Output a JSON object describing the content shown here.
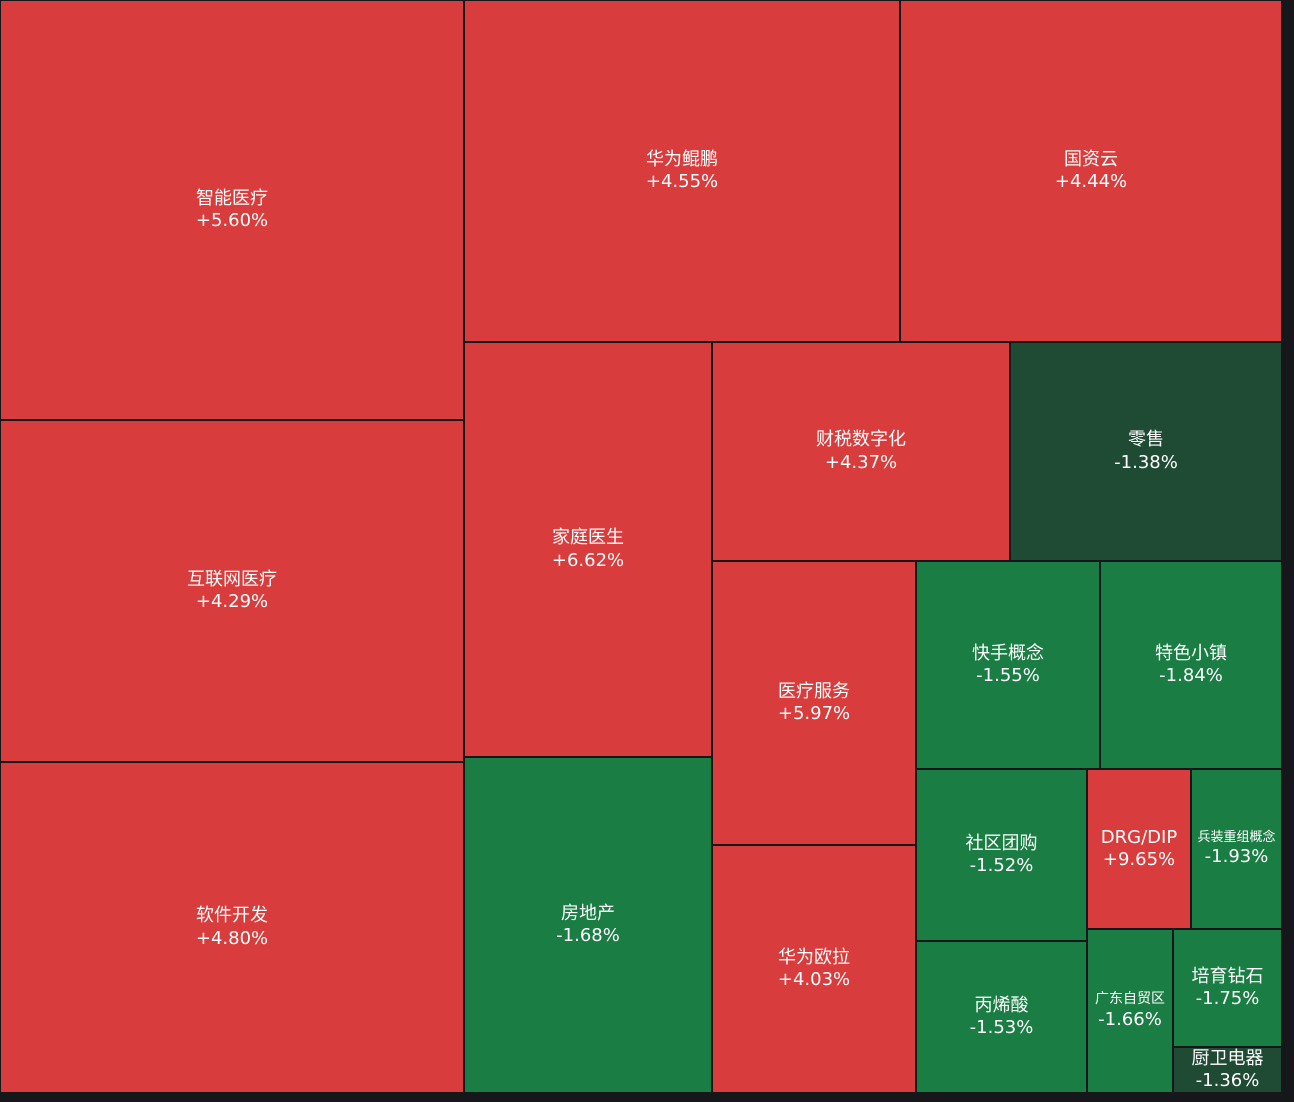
{
  "colors": {
    "up": "#d93c3c",
    "down": "#1a7d43",
    "down_dark": "#1f4a33",
    "background": "#15171b",
    "text": "#ffffff"
  },
  "chart_data": {
    "type": "treemap",
    "title": "",
    "cells": [
      {
        "name": "智能医疗",
        "change": 5.6,
        "label": "+5.60%"
      },
      {
        "name": "互联网医疗",
        "change": 4.29,
        "label": "+4.29%"
      },
      {
        "name": "软件开发",
        "change": 4.8,
        "label": "+4.80%"
      },
      {
        "name": "华为鲲鹏",
        "change": 4.55,
        "label": "+4.55%"
      },
      {
        "name": "国资云",
        "change": 4.44,
        "label": "+4.44%"
      },
      {
        "name": "家庭医生",
        "change": 6.62,
        "label": "+6.62%"
      },
      {
        "name": "房地产",
        "change": -1.68,
        "label": "-1.68%"
      },
      {
        "name": "财税数字化",
        "change": 4.37,
        "label": "+4.37%"
      },
      {
        "name": "零售",
        "change": -1.38,
        "label": "-1.38%"
      },
      {
        "name": "医疗服务",
        "change": 5.97,
        "label": "+5.97%"
      },
      {
        "name": "华为欧拉",
        "change": 4.03,
        "label": "+4.03%"
      },
      {
        "name": "快手概念",
        "change": -1.55,
        "label": "-1.55%"
      },
      {
        "name": "特色小镇",
        "change": -1.84,
        "label": "-1.84%"
      },
      {
        "name": "社区团购",
        "change": -1.52,
        "label": "-1.52%"
      },
      {
        "name": "DRG/DIP",
        "change": 9.65,
        "label": "+9.65%"
      },
      {
        "name": "兵装重组概念",
        "change": -1.93,
        "label": "-1.93%"
      },
      {
        "name": "丙烯酸",
        "change": -1.53,
        "label": "-1.53%"
      },
      {
        "name": "广东自贸区",
        "change": -1.66,
        "label": "-1.66%"
      },
      {
        "name": "培育钻石",
        "change": -1.75,
        "label": "-1.75%"
      },
      {
        "name": "厨卫电器",
        "change": -1.36,
        "label": "-1.36%"
      }
    ]
  }
}
